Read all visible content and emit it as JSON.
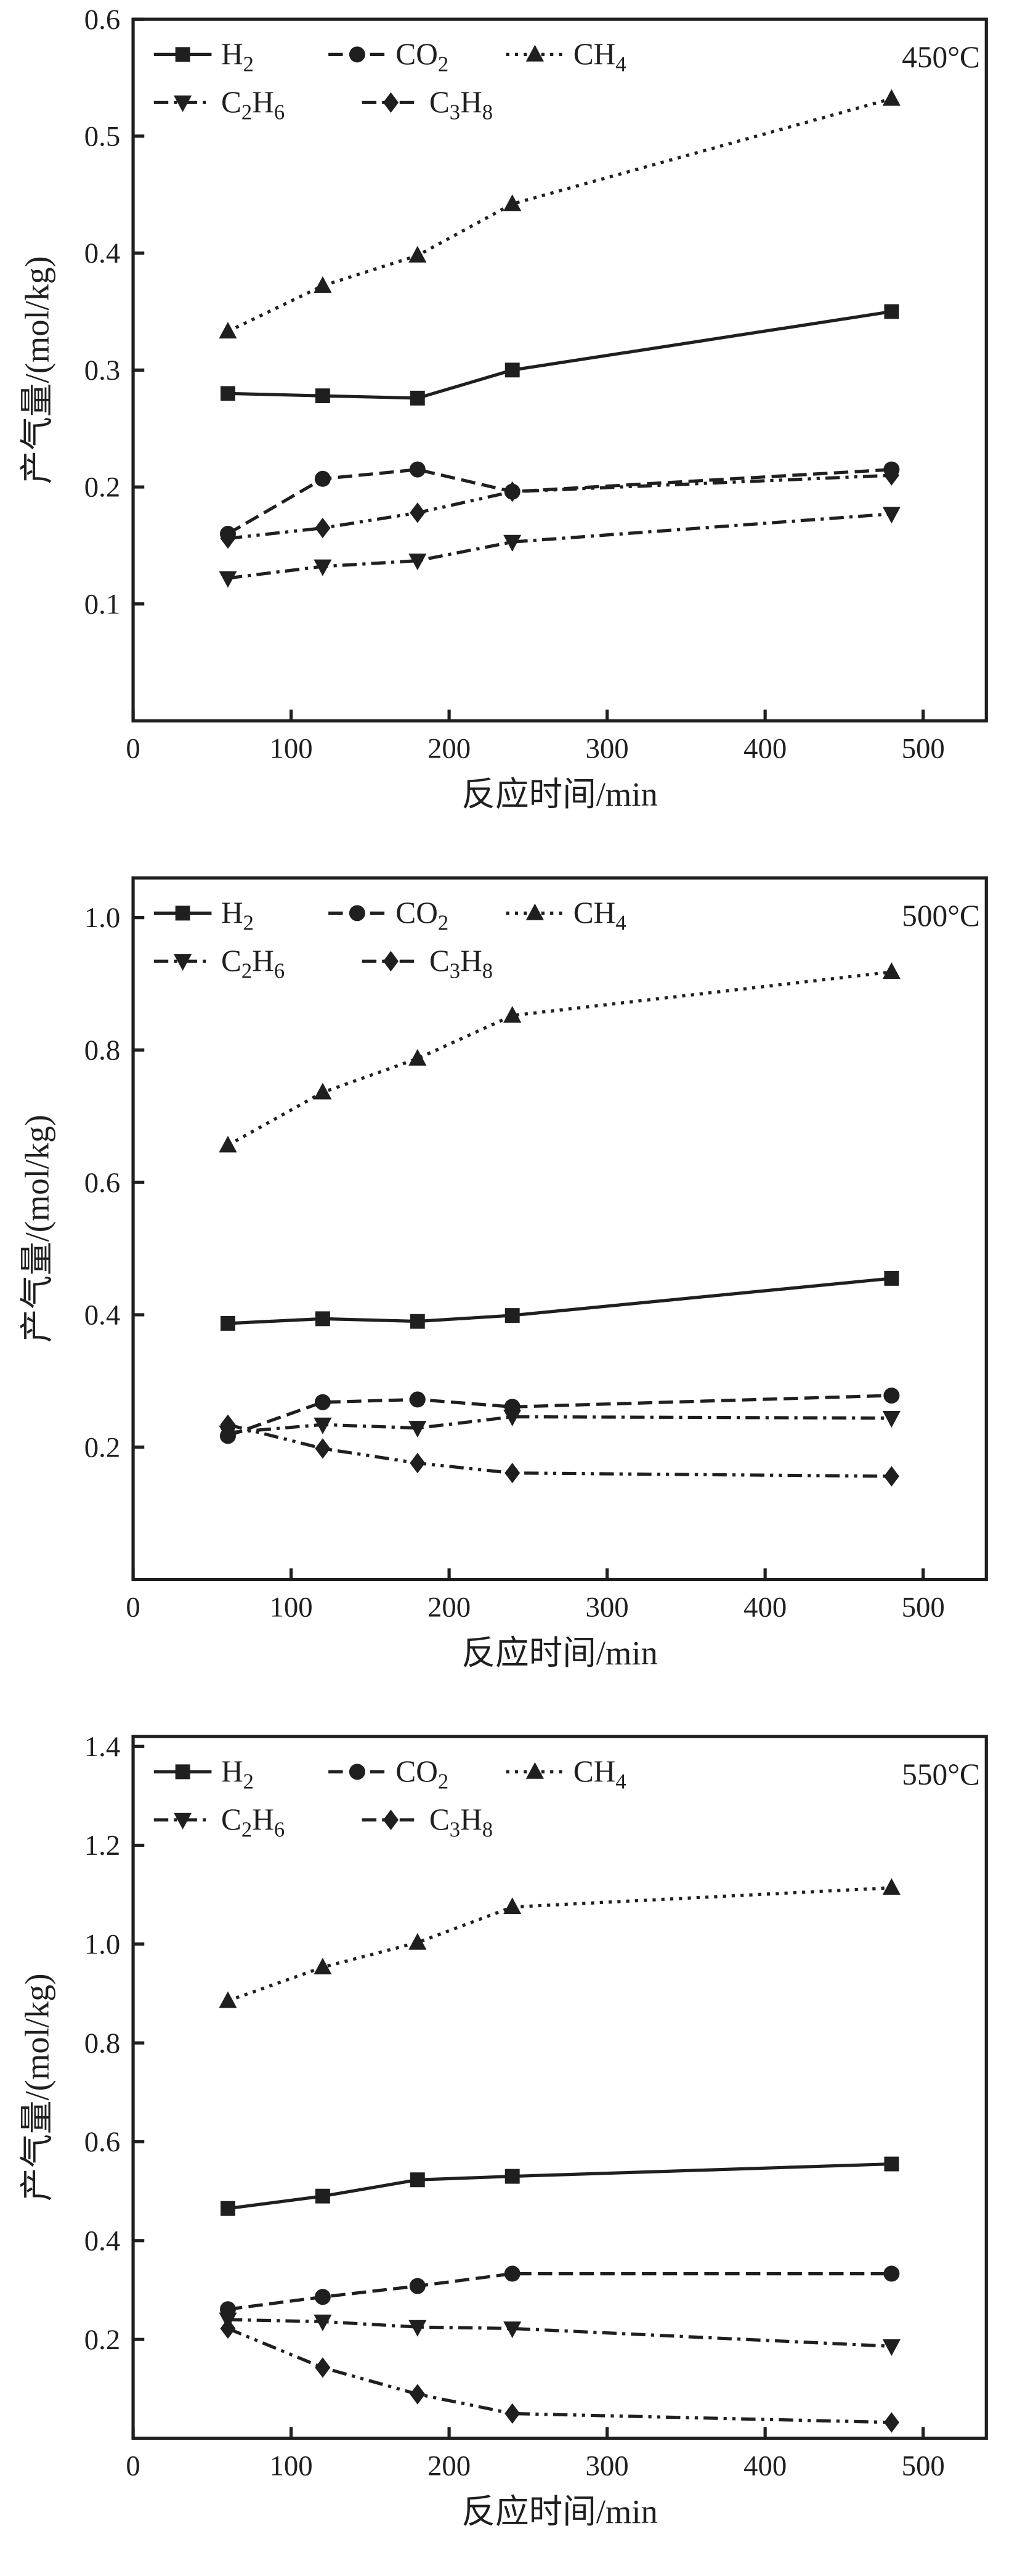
{
  "page": {
    "background": "#ffffff",
    "ink": "#1f1f1f"
  },
  "chart_data": [
    {
      "type": "line",
      "temperature_label": "450°C",
      "xlabel": "反应时间/min",
      "ylabel": "产气量/(mol/kg)",
      "legend_position": "top-left",
      "grid": false,
      "x": [
        60,
        120,
        180,
        240,
        480
      ],
      "xlim": [
        0,
        540
      ],
      "xticks": [
        0,
        100,
        200,
        300,
        400,
        500
      ],
      "ylim": [
        0,
        0.6
      ],
      "yticks": [
        0.1,
        0.2,
        0.3,
        0.4,
        0.5,
        0.6
      ],
      "series": [
        {
          "name": "H2",
          "label": [
            {
              "t": "H"
            },
            {
              "t": "2",
              "sub": true
            }
          ],
          "marker": "square",
          "line": "solid",
          "values": [
            0.28,
            0.278,
            0.276,
            0.3,
            0.35
          ]
        },
        {
          "name": "CO2",
          "label": [
            {
              "t": "CO"
            },
            {
              "t": "2",
              "sub": true
            }
          ],
          "marker": "circle",
          "line": "dashed",
          "values": [
            0.16,
            0.207,
            0.215,
            0.196,
            0.215
          ]
        },
        {
          "name": "CH4",
          "label": [
            {
              "t": "CH"
            },
            {
              "t": "4",
              "sub": true
            }
          ],
          "marker": "triangle-up",
          "line": "dotted",
          "values": [
            0.333,
            0.372,
            0.398,
            0.442,
            0.532
          ]
        },
        {
          "name": "C2H6",
          "label": [
            {
              "t": "C"
            },
            {
              "t": "2",
              "sub": true
            },
            {
              "t": "H"
            },
            {
              "t": "6",
              "sub": true
            }
          ],
          "marker": "triangle-down",
          "line": "dashdot",
          "values": [
            0.122,
            0.132,
            0.137,
            0.153,
            0.177
          ]
        },
        {
          "name": "C3H8",
          "label": [
            {
              "t": "C"
            },
            {
              "t": "3",
              "sub": true
            },
            {
              "t": "H"
            },
            {
              "t": "8",
              "sub": true
            }
          ],
          "marker": "diamond",
          "line": "dashdotdot",
          "values": [
            0.156,
            0.165,
            0.178,
            0.196,
            0.21
          ]
        }
      ]
    },
    {
      "type": "line",
      "temperature_label": "500°C",
      "xlabel": "反应时间/min",
      "ylabel": "产气量/(mol/kg)",
      "legend_position": "top-left",
      "grid": false,
      "x": [
        60,
        120,
        180,
        240,
        480
      ],
      "xlim": [
        0,
        540
      ],
      "xticks": [
        0,
        100,
        200,
        300,
        400,
        500
      ],
      "ylim": [
        0,
        1.06
      ],
      "yticks": [
        0.2,
        0.4,
        0.6,
        0.8,
        1.0
      ],
      "series": [
        {
          "name": "H2",
          "label": [
            {
              "t": "H"
            },
            {
              "t": "2",
              "sub": true
            }
          ],
          "marker": "square",
          "line": "solid",
          "values": [
            0.387,
            0.394,
            0.39,
            0.399,
            0.455
          ]
        },
        {
          "name": "CO2",
          "label": [
            {
              "t": "CO"
            },
            {
              "t": "2",
              "sub": true
            }
          ],
          "marker": "circle",
          "line": "dashed",
          "values": [
            0.217,
            0.268,
            0.272,
            0.261,
            0.278
          ]
        },
        {
          "name": "CH4",
          "label": [
            {
              "t": "CH"
            },
            {
              "t": "4",
              "sub": true
            }
          ],
          "marker": "triangle-up",
          "line": "dotted",
          "values": [
            0.656,
            0.736,
            0.787,
            0.852,
            0.918
          ]
        },
        {
          "name": "C2H6",
          "label": [
            {
              "t": "C"
            },
            {
              "t": "2",
              "sub": true
            },
            {
              "t": "H"
            },
            {
              "t": "6",
              "sub": true
            }
          ],
          "marker": "triangle-down",
          "line": "dashdot",
          "values": [
            0.222,
            0.234,
            0.229,
            0.246,
            0.244
          ]
        },
        {
          "name": "C3H8",
          "label": [
            {
              "t": "C"
            },
            {
              "t": "3",
              "sub": true
            },
            {
              "t": "H"
            },
            {
              "t": "8",
              "sub": true
            }
          ],
          "marker": "diamond",
          "line": "dashdotdot",
          "values": [
            0.234,
            0.198,
            0.176,
            0.161,
            0.156
          ]
        }
      ]
    },
    {
      "type": "line",
      "temperature_label": "550°C",
      "xlabel": "反应时间/min",
      "ylabel": "产气量/(mol/kg)",
      "legend_position": "top-left",
      "grid": false,
      "x": [
        60,
        120,
        180,
        240,
        480
      ],
      "xlim": [
        0,
        540
      ],
      "xticks": [
        0,
        100,
        200,
        300,
        400,
        500
      ],
      "ylim": [
        0,
        1.42
      ],
      "yticks": [
        0.2,
        0.4,
        0.6,
        0.8,
        1.0,
        1.2,
        1.4
      ],
      "series": [
        {
          "name": "H2",
          "label": [
            {
              "t": "H"
            },
            {
              "t": "2",
              "sub": true
            }
          ],
          "marker": "square",
          "line": "solid",
          "values": [
            0.465,
            0.49,
            0.523,
            0.53,
            0.555
          ]
        },
        {
          "name": "CO2",
          "label": [
            {
              "t": "CO"
            },
            {
              "t": "2",
              "sub": true
            }
          ],
          "marker": "circle",
          "line": "dashed",
          "values": [
            0.261,
            0.286,
            0.308,
            0.333,
            0.333
          ]
        },
        {
          "name": "CH4",
          "label": [
            {
              "t": "CH"
            },
            {
              "t": "4",
              "sub": true
            }
          ],
          "marker": "triangle-up",
          "line": "dotted",
          "values": [
            0.885,
            0.953,
            1.003,
            1.075,
            1.114
          ]
        },
        {
          "name": "C2H6",
          "label": [
            {
              "t": "C"
            },
            {
              "t": "2",
              "sub": true
            },
            {
              "t": "H"
            },
            {
              "t": "6",
              "sub": true
            }
          ],
          "marker": "triangle-down",
          "line": "dashdot",
          "values": [
            0.24,
            0.236,
            0.225,
            0.222,
            0.186
          ]
        },
        {
          "name": "C3H8",
          "label": [
            {
              "t": "C"
            },
            {
              "t": "3",
              "sub": true
            },
            {
              "t": "H"
            },
            {
              "t": "8",
              "sub": true
            }
          ],
          "marker": "diamond",
          "line": "dashdotdot",
          "values": [
            0.222,
            0.143,
            0.089,
            0.05,
            0.032
          ]
        }
      ]
    }
  ]
}
